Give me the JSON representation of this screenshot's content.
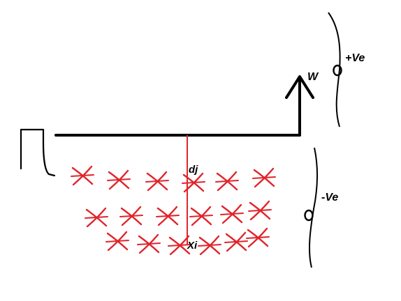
{
  "labels": {
    "w": "W",
    "plus_ve": "+Ve",
    "minus_ve": "-Ve",
    "dj": "dj",
    "xi": "Xi"
  },
  "colors": {
    "ink": "#000000",
    "cross": "#e0242b",
    "background": "#ffffff"
  }
}
